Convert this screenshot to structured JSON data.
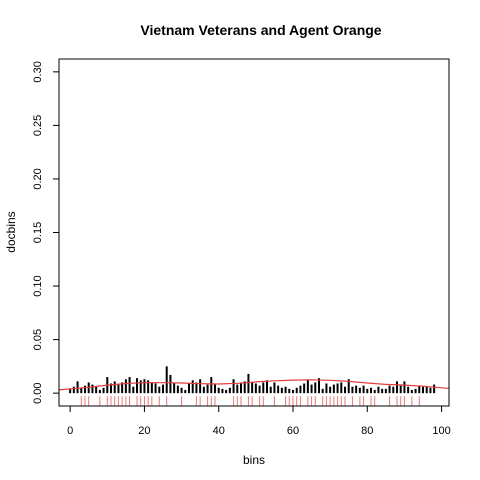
{
  "chart_data": {
    "type": "bar",
    "title": "Vietnam Veterans and Agent Orange",
    "xlabel": "bins",
    "ylabel": "docbins",
    "xlim": [
      -3,
      102
    ],
    "ylim": [
      -0.012,
      0.312
    ],
    "x_ticks": [
      0,
      20,
      40,
      60,
      80,
      100
    ],
    "y_ticks": [
      0.0,
      0.05,
      0.1,
      0.15,
      0.2,
      0.25,
      0.3
    ],
    "x_tick_labels": [
      "0",
      "20",
      "40",
      "60",
      "80",
      "100"
    ],
    "y_tick_labels": [
      "0.00",
      "0.05",
      "0.10",
      "0.15",
      "0.20",
      "0.25",
      "0.30"
    ],
    "grid": false,
    "bar_color": "#000000",
    "curve_color": "#e03c3c",
    "rug_color": "#e87a7a",
    "bars": {
      "x": [
        0,
        1,
        2,
        3,
        4,
        5,
        6,
        7,
        8,
        9,
        10,
        11,
        12,
        13,
        14,
        15,
        16,
        17,
        18,
        19,
        20,
        21,
        22,
        23,
        24,
        25,
        26,
        27,
        28,
        29,
        30,
        31,
        32,
        33,
        34,
        35,
        36,
        37,
        38,
        39,
        40,
        41,
        42,
        43,
        44,
        45,
        46,
        47,
        48,
        49,
        50,
        51,
        52,
        53,
        54,
        55,
        56,
        57,
        58,
        59,
        60,
        61,
        62,
        63,
        64,
        65,
        66,
        67,
        68,
        69,
        70,
        71,
        72,
        73,
        74,
        75,
        76,
        77,
        78,
        79,
        80,
        81,
        82,
        83,
        84,
        85,
        86,
        87,
        88,
        89,
        90,
        91,
        92,
        93,
        94,
        95,
        96,
        97,
        98
      ],
      "values": [
        0.004,
        0.006,
        0.011,
        0.005,
        0.007,
        0.01,
        0.008,
        0.006,
        0.003,
        0.005,
        0.015,
        0.009,
        0.011,
        0.008,
        0.01,
        0.013,
        0.015,
        0.006,
        0.014,
        0.012,
        0.013,
        0.012,
        0.01,
        0.009,
        0.006,
        0.008,
        0.025,
        0.017,
        0.009,
        0.007,
        0.005,
        0.003,
        0.009,
        0.012,
        0.01,
        0.013,
        0.006,
        0.008,
        0.015,
        0.008,
        0.005,
        0.004,
        0.003,
        0.005,
        0.013,
        0.008,
        0.01,
        0.011,
        0.018,
        0.01,
        0.009,
        0.007,
        0.01,
        0.012,
        0.006,
        0.01,
        0.007,
        0.005,
        0.006,
        0.004,
        0.003,
        0.005,
        0.007,
        0.009,
        0.012,
        0.008,
        0.01,
        0.014,
        0.004,
        0.009,
        0.006,
        0.008,
        0.009,
        0.01,
        0.006,
        0.013,
        0.006,
        0.007,
        0.005,
        0.007,
        0.004,
        0.005,
        0.003,
        0.006,
        0.004,
        0.004,
        0.007,
        0.006,
        0.011,
        0.007,
        0.011,
        0.006,
        0.003,
        0.004,
        0.007,
        0.006,
        0.006,
        0.005,
        0.008
      ]
    },
    "curve": {
      "x": [
        -3,
        5,
        10,
        15,
        20,
        25,
        30,
        35,
        40,
        45,
        50,
        55,
        60,
        65,
        70,
        75,
        80,
        85,
        90,
        95,
        100,
        102
      ],
      "y": [
        0.003,
        0.0055,
        0.0075,
        0.009,
        0.0098,
        0.0098,
        0.0095,
        0.0088,
        0.0085,
        0.0092,
        0.0105,
        0.0115,
        0.0122,
        0.0125,
        0.012,
        0.011,
        0.0095,
        0.0082,
        0.0075,
        0.0065,
        0.005,
        0.0045
      ]
    },
    "rug": [
      3,
      4,
      5,
      8,
      10,
      11,
      12,
      13,
      14,
      15,
      16,
      18,
      19,
      20,
      21,
      22,
      24,
      26,
      30,
      34,
      35,
      37,
      38,
      39,
      44,
      45,
      46,
      48,
      49,
      51,
      52,
      55,
      58,
      59,
      60,
      61,
      62,
      64,
      65,
      66,
      68,
      69,
      70,
      71,
      72,
      73,
      74,
      76,
      78,
      79,
      81,
      82,
      86,
      88,
      89,
      90,
      92,
      94
    ]
  }
}
